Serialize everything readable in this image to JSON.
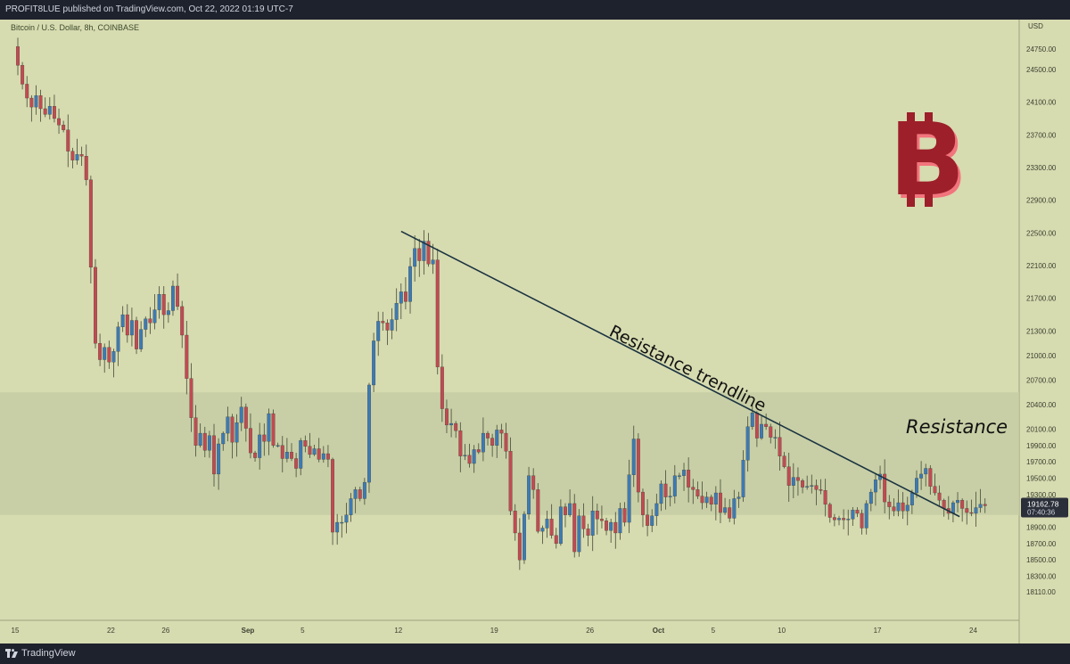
{
  "header": {
    "text": "PROFIT8LUE published on TradingView.com, Oct 22, 2022 01:19 UTC-7"
  },
  "footer": {
    "brand": "TradingView"
  },
  "chart_data": {
    "type": "candlestick",
    "title": "Bitcoin / U.S. Dollar, 8h, COINBASE",
    "currency": "USD",
    "ylim": [
      18000,
      24950
    ],
    "yticks": [
      "24750.00",
      "24500.00",
      "24100.00",
      "23700.00",
      "23300.00",
      "22900.00",
      "22500.00",
      "22100.00",
      "21700.00",
      "21300.00",
      "21000.00",
      "20700.00",
      "20400.00",
      "20100.00",
      "19900.00",
      "19700.00",
      "19500.00",
      "19300.00",
      "18900.00",
      "18700.00",
      "18500.00",
      "18300.00",
      "18110.00"
    ],
    "xticks": [
      {
        "label": "15",
        "day": 15
      },
      {
        "label": "22",
        "day": 22
      },
      {
        "label": "26",
        "day": 26
      },
      {
        "label": "Sep",
        "day": 32
      },
      {
        "label": "5",
        "day": 36
      },
      {
        "label": "12",
        "day": 43
      },
      {
        "label": "19",
        "day": 50
      },
      {
        "label": "26",
        "day": 57
      },
      {
        "label": "Oct",
        "day": 62
      },
      {
        "label": "5",
        "day": 66
      },
      {
        "label": "10",
        "day": 71
      },
      {
        "label": "17",
        "day": 78
      },
      {
        "label": "24",
        "day": 85
      }
    ],
    "x_unit": "days since Aug 0, 2022",
    "closes": [
      24550,
      24320,
      24150,
      24040,
      24180,
      24020,
      23950,
      24050,
      23900,
      23820,
      23760,
      23500,
      23390,
      23460,
      23440,
      23150,
      22080,
      21150,
      20950,
      21100,
      20920,
      21050,
      21350,
      21500,
      21250,
      21430,
      21080,
      21320,
      21450,
      21400,
      21560,
      21750,
      21500,
      21550,
      21850,
      21600,
      21250,
      20720,
      20240,
      19900,
      20050,
      19840,
      20020,
      19550,
      19920,
      20050,
      20250,
      19940,
      20180,
      20370,
      20110,
      19810,
      19750,
      20030,
      19950,
      20290,
      19900,
      19900,
      19740,
      19820,
      19740,
      19620,
      19960,
      19890,
      19790,
      19860,
      19730,
      19800,
      19730,
      18840,
      18960,
      18960,
      19050,
      19250,
      19360,
      19250,
      19450,
      20640,
      21180,
      21420,
      21400,
      21310,
      21440,
      21640,
      21780,
      21660,
      22090,
      22310,
      22160,
      22400,
      22120,
      22170,
      20860,
      20350,
      20150,
      20170,
      20080,
      19770,
      19780,
      19680,
      19850,
      19820,
      20050,
      19990,
      19900,
      20090,
      20050,
      19830,
      19100,
      18830,
      18500,
      19060,
      19530,
      19360,
      18850,
      18890,
      19000,
      18800,
      18700,
      19150,
      19050,
      19190,
      18600,
      19040,
      18880,
      18800,
      19100,
      19000,
      18980,
      18860,
      18960,
      18830,
      19130,
      18960,
      19540,
      19980,
      19330,
      19050,
      18920,
      19040,
      19190,
      19430,
      19270,
      19280,
      19530,
      19530,
      19600,
      19390,
      19360,
      19280,
      19200,
      19270,
      19180,
      19320,
      19080,
      19140,
      19010,
      19250,
      19270,
      19720,
      20130,
      20300,
      19990,
      20160,
      20130,
      20000,
      20000,
      19770,
      19640,
      19410,
      19510,
      19470,
      19390,
      19400,
      19410,
      19360,
      19350,
      19180,
      19020,
      18990,
      19010,
      18990,
      19000,
      19110,
      19070,
      18890,
      19190,
      19330,
      19480,
      19550,
      19210,
      19150,
      19100,
      19200,
      19100,
      19170,
      19320,
      19500,
      19550,
      19620,
      19400,
      19320,
      19230,
      19130,
      19070,
      19200,
      19230,
      19130,
      19080,
      19070,
      19140,
      19180,
      19163
    ],
    "last_price": "19162.78",
    "countdown": "07:40:36",
    "resistance_zone": [
      19050,
      20550
    ],
    "trendline": {
      "from": {
        "day": 43.2,
        "price": 22520
      },
      "to": {
        "day": 84,
        "price": 19030
      }
    },
    "annotations": {
      "trendline_label": "Resistance trendline",
      "zone_label": "Resistance"
    },
    "colors": {
      "up": "#3d7ab5",
      "down": "#c24a52",
      "background": "#d7dbb0",
      "zone": "#c8cea6",
      "last_price_bg": "#2b2f3a",
      "bitcoin_logo": "#9c1f2a"
    },
    "icons": {
      "logo": "bitcoin-logo-icon"
    }
  }
}
